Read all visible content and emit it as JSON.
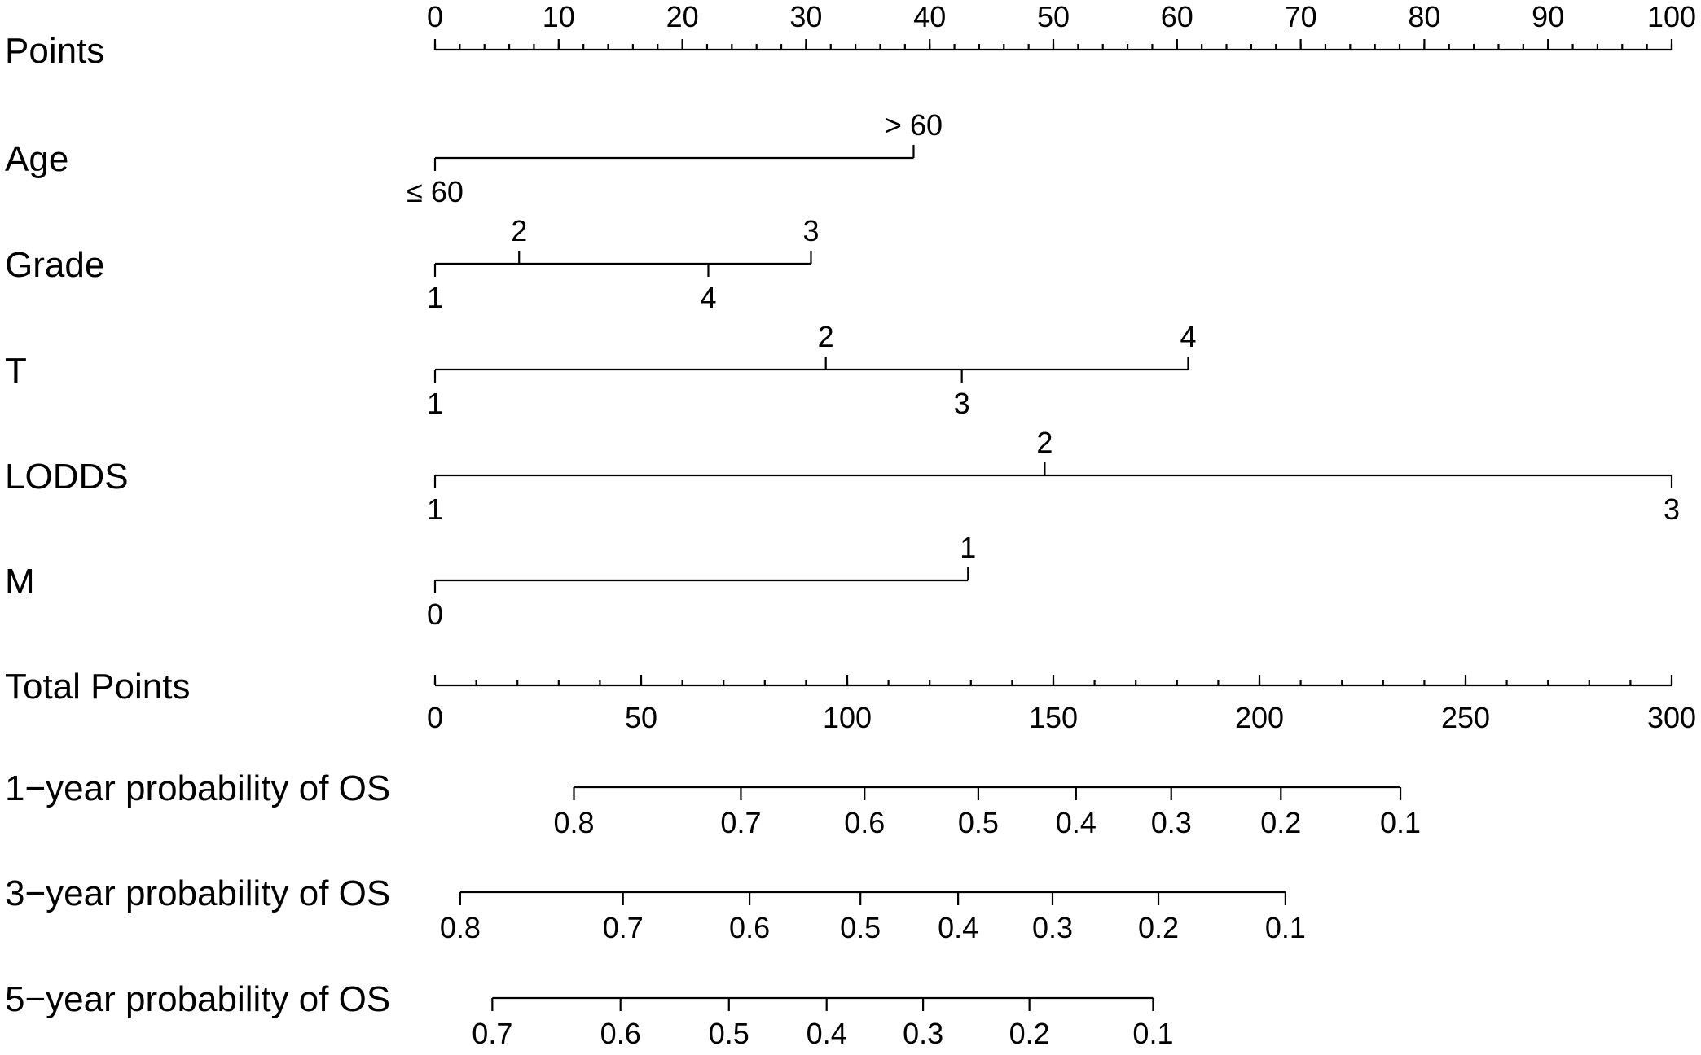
{
  "chart_data": {
    "type": "nomogram",
    "rows": [
      {
        "id": "points",
        "label": "Points",
        "kind": "scale",
        "scale_min": 0,
        "scale_max": 100,
        "tick_labels": [
          {
            "text": "0",
            "value": 0
          },
          {
            "text": "10",
            "value": 10
          },
          {
            "text": "20",
            "value": 20
          },
          {
            "text": "30",
            "value": 30
          },
          {
            "text": "40",
            "value": 40
          },
          {
            "text": "50",
            "value": 50
          },
          {
            "text": "60",
            "value": 60
          },
          {
            "text": "70",
            "value": 70
          },
          {
            "text": "80",
            "value": 80
          },
          {
            "text": "90",
            "value": 90
          },
          {
            "text": "100",
            "value": 100
          }
        ],
        "minor_step": 2,
        "label_side": "above"
      },
      {
        "id": "age",
        "label": "Age",
        "kind": "variable",
        "levels": [
          {
            "text": "≤ 60",
            "points": 0,
            "side": "below"
          },
          {
            "text": "> 60",
            "points": 38.7,
            "side": "above"
          }
        ]
      },
      {
        "id": "grade",
        "label": "Grade",
        "kind": "variable",
        "levels": [
          {
            "text": "1",
            "points": 0,
            "side": "below"
          },
          {
            "text": "2",
            "points": 6.8,
            "side": "above"
          },
          {
            "text": "4",
            "points": 22.1,
            "side": "below"
          },
          {
            "text": "3",
            "points": 30.4,
            "side": "above"
          }
        ]
      },
      {
        "id": "t",
        "label": "T",
        "kind": "variable",
        "levels": [
          {
            "text": "1",
            "points": 0,
            "side": "below"
          },
          {
            "text": "2",
            "points": 31.6,
            "side": "above"
          },
          {
            "text": "3",
            "points": 42.6,
            "side": "below"
          },
          {
            "text": "4",
            "points": 60.9,
            "side": "above"
          }
        ]
      },
      {
        "id": "lodds",
        "label": "LODDS",
        "kind": "variable",
        "levels": [
          {
            "text": "1",
            "points": 0,
            "side": "below"
          },
          {
            "text": "2",
            "points": 49.3,
            "side": "above"
          },
          {
            "text": "3",
            "points": 100,
            "side": "below"
          }
        ]
      },
      {
        "id": "m",
        "label": "M",
        "kind": "variable",
        "levels": [
          {
            "text": "0",
            "points": 0,
            "side": "below"
          },
          {
            "text": "1",
            "points": 43.1,
            "side": "above"
          }
        ]
      },
      {
        "id": "total_points",
        "label": "Total Points",
        "kind": "scale",
        "scale_min": 0,
        "scale_max": 300,
        "tick_labels": [
          {
            "text": "0",
            "value": 0
          },
          {
            "text": "50",
            "value": 50
          },
          {
            "text": "100",
            "value": 100
          },
          {
            "text": "150",
            "value": 150
          },
          {
            "text": "200",
            "value": 200
          },
          {
            "text": "250",
            "value": 250
          },
          {
            "text": "300",
            "value": 300
          }
        ],
        "minor_step": 10,
        "label_side": "below"
      },
      {
        "id": "os_1y",
        "label": "1−year probability of OS",
        "kind": "probability",
        "ticks": [
          {
            "text": "0.8",
            "total_points": 33.7
          },
          {
            "text": "0.7",
            "total_points": 74.2
          },
          {
            "text": "0.6",
            "total_points": 104.2
          },
          {
            "text": "0.5",
            "total_points": 131.8
          },
          {
            "text": "0.4",
            "total_points": 155.5
          },
          {
            "text": "0.3",
            "total_points": 178.6
          },
          {
            "text": "0.2",
            "total_points": 205.2
          },
          {
            "text": "0.1",
            "total_points": 234.2
          }
        ]
      },
      {
        "id": "os_3y",
        "label": "3−year probability of OS",
        "kind": "probability",
        "ticks": [
          {
            "text": "0.8",
            "total_points": 6.1
          },
          {
            "text": "0.7",
            "total_points": 45.6
          },
          {
            "text": "0.6",
            "total_points": 76.3
          },
          {
            "text": "0.5",
            "total_points": 103.2
          },
          {
            "text": "0.4",
            "total_points": 126.9
          },
          {
            "text": "0.3",
            "total_points": 149.8
          },
          {
            "text": "0.2",
            "total_points": 175.5
          },
          {
            "text": "0.1",
            "total_points": 206.3
          }
        ]
      },
      {
        "id": "os_5y",
        "label": "5−year probability of OS",
        "kind": "probability",
        "ticks": [
          {
            "text": "0.7",
            "total_points": 13.9
          },
          {
            "text": "0.6",
            "total_points": 45.0
          },
          {
            "text": "0.5",
            "total_points": 71.3
          },
          {
            "text": "0.4",
            "total_points": 95.0
          },
          {
            "text": "0.3",
            "total_points": 118.4
          },
          {
            "text": "0.2",
            "total_points": 144.2
          },
          {
            "text": "0.1",
            "total_points": 174.2
          }
        ]
      }
    ]
  }
}
